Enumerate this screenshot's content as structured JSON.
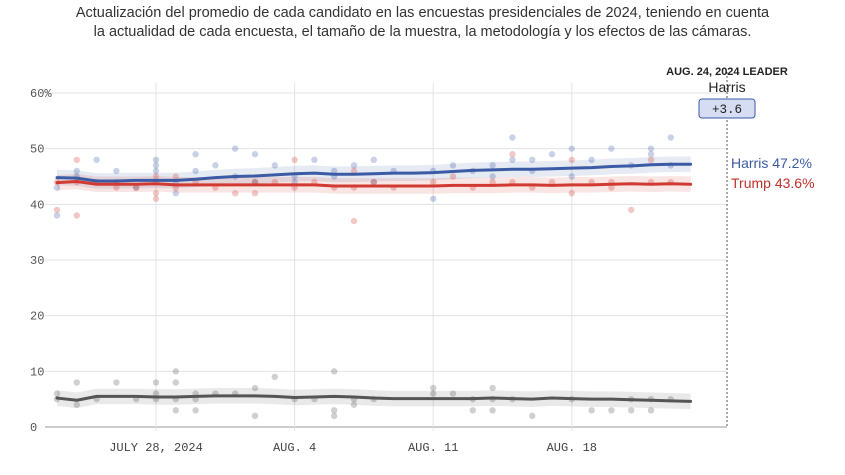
{
  "subtitle": "Actualización del promedio de cada candidato en las encuestas presidenciales de 2024, teniendo en cuenta la actualidad de cada encuesta, el tamaño de la muestra, la metodología y los efectos de las cámaras.",
  "leader": {
    "heading": "AUG. 24, 2024 LEADER",
    "name": "Harris",
    "margin": "+3.6"
  },
  "labels": {
    "harris": "Harris 47.2%",
    "trump": "Trump 43.6%"
  },
  "colors": {
    "harris": "#3b5ba5",
    "trump": "#d03a32",
    "other": "#555555",
    "grid": "#e3e3e3",
    "leader_box": "#d6dcf2"
  },
  "chart_data": {
    "type": "line",
    "ylim": [
      0,
      60
    ],
    "y_ticks": [
      "0",
      "10",
      "20",
      "30",
      "40",
      "50",
      "60%"
    ],
    "x_ticks": [
      {
        "label": "JULY 28, 2024",
        "day": 28
      },
      {
        "label": "AUG. 4",
        "day": 35
      },
      {
        "label": "AUG. 11",
        "day": 42
      },
      {
        "label": "AUG. 18",
        "day": 49
      }
    ],
    "x_days": [
      23,
      24,
      25,
      26,
      27,
      28,
      29,
      30,
      31,
      32,
      33,
      34,
      35,
      36,
      37,
      38,
      39,
      40,
      41,
      42,
      43,
      44,
      45,
      46,
      47,
      48,
      49,
      50,
      51,
      52,
      53,
      54,
      55
    ],
    "series": [
      {
        "key": "harris",
        "values": [
          44.8,
          44.7,
          44.2,
          44.2,
          44.3,
          44.3,
          44.3,
          44.5,
          44.8,
          45.0,
          45.1,
          45.3,
          45.5,
          45.6,
          45.4,
          45.4,
          45.5,
          45.6,
          45.6,
          45.7,
          45.9,
          46.1,
          46.2,
          46.3,
          46.3,
          46.4,
          46.5,
          46.6,
          46.8,
          46.9,
          47.1,
          47.2,
          47.2
        ],
        "polls": [
          [
            23,
            43
          ],
          [
            23,
            38
          ],
          [
            24,
            46
          ],
          [
            24,
            45
          ],
          [
            25,
            48
          ],
          [
            26,
            46
          ],
          [
            26,
            44
          ],
          [
            27,
            43
          ],
          [
            28,
            48
          ],
          [
            28,
            47
          ],
          [
            28,
            46
          ],
          [
            29,
            44
          ],
          [
            29,
            42
          ],
          [
            30,
            49
          ],
          [
            30,
            46
          ],
          [
            31,
            47
          ],
          [
            32,
            50
          ],
          [
            32,
            45
          ],
          [
            33,
            49
          ],
          [
            33,
            44
          ],
          [
            34,
            47
          ],
          [
            35,
            45
          ],
          [
            35,
            44
          ],
          [
            36,
            48
          ],
          [
            37,
            46
          ],
          [
            37,
            45
          ],
          [
            38,
            47
          ],
          [
            39,
            48
          ],
          [
            39,
            44
          ],
          [
            40,
            46
          ],
          [
            42,
            41
          ],
          [
            42,
            46
          ],
          [
            43,
            47
          ],
          [
            44,
            46
          ],
          [
            45,
            47
          ],
          [
            45,
            45
          ],
          [
            46,
            52
          ],
          [
            46,
            48
          ],
          [
            47,
            48
          ],
          [
            47,
            46
          ],
          [
            48,
            49
          ],
          [
            49,
            50
          ],
          [
            49,
            45
          ],
          [
            50,
            48
          ],
          [
            51,
            50
          ],
          [
            52,
            47
          ],
          [
            53,
            50
          ],
          [
            53,
            49
          ],
          [
            54,
            52
          ],
          [
            54,
            47
          ]
        ]
      },
      {
        "key": "trump",
        "values": [
          43.9,
          44.1,
          43.6,
          43.6,
          43.6,
          43.7,
          43.5,
          43.5,
          43.5,
          43.5,
          43.5,
          43.5,
          43.5,
          43.5,
          43.3,
          43.3,
          43.3,
          43.3,
          43.3,
          43.3,
          43.4,
          43.4,
          43.4,
          43.5,
          43.5,
          43.4,
          43.5,
          43.5,
          43.6,
          43.7,
          43.6,
          43.7,
          43.6
        ],
        "polls": [
          [
            23,
            44
          ],
          [
            23,
            39
          ],
          [
            24,
            48
          ],
          [
            24,
            44
          ],
          [
            24,
            38
          ],
          [
            25,
            44
          ],
          [
            26,
            43
          ],
          [
            27,
            43
          ],
          [
            28,
            45
          ],
          [
            28,
            44
          ],
          [
            28,
            42
          ],
          [
            28,
            41
          ],
          [
            29,
            45
          ],
          [
            29,
            43
          ],
          [
            30,
            44
          ],
          [
            31,
            43
          ],
          [
            32,
            42
          ],
          [
            33,
            44
          ],
          [
            33,
            42
          ],
          [
            34,
            44
          ],
          [
            35,
            48
          ],
          [
            35,
            43
          ],
          [
            36,
            44
          ],
          [
            37,
            43
          ],
          [
            38,
            46
          ],
          [
            38,
            43
          ],
          [
            38,
            37
          ],
          [
            39,
            44
          ],
          [
            40,
            43
          ],
          [
            42,
            44
          ],
          [
            43,
            45
          ],
          [
            44,
            43
          ],
          [
            45,
            44
          ],
          [
            46,
            49
          ],
          [
            46,
            44
          ],
          [
            47,
            43
          ],
          [
            48,
            44
          ],
          [
            49,
            48
          ],
          [
            49,
            42
          ],
          [
            50,
            44
          ],
          [
            51,
            44
          ],
          [
            51,
            43
          ],
          [
            52,
            39
          ],
          [
            53,
            48
          ],
          [
            53,
            44
          ],
          [
            54,
            44
          ]
        ]
      },
      {
        "key": "other",
        "values": [
          5.2,
          4.8,
          5.5,
          5.5,
          5.5,
          5.4,
          5.4,
          5.5,
          5.6,
          5.6,
          5.6,
          5.5,
          5.3,
          5.4,
          5.5,
          5.4,
          5.2,
          5.1,
          5.1,
          5.1,
          5.1,
          5.1,
          5.2,
          5.1,
          5.0,
          5.2,
          5.1,
          5.0,
          5.0,
          4.9,
          4.8,
          4.7,
          4.6
        ],
        "polls": [
          [
            23,
            6
          ],
          [
            23,
            5
          ],
          [
            24,
            8
          ],
          [
            24,
            4
          ],
          [
            25,
            5
          ],
          [
            26,
            8
          ],
          [
            27,
            5
          ],
          [
            28,
            8
          ],
          [
            28,
            6
          ],
          [
            28,
            5
          ],
          [
            29,
            10
          ],
          [
            29,
            8
          ],
          [
            29,
            5
          ],
          [
            29,
            3
          ],
          [
            30,
            6
          ],
          [
            30,
            5
          ],
          [
            30,
            3
          ],
          [
            31,
            6
          ],
          [
            32,
            6
          ],
          [
            33,
            2
          ],
          [
            33,
            7
          ],
          [
            34,
            9
          ],
          [
            35,
            5
          ],
          [
            36,
            5
          ],
          [
            37,
            10
          ],
          [
            37,
            3
          ],
          [
            37,
            2
          ],
          [
            38,
            5
          ],
          [
            38,
            4
          ],
          [
            39,
            5
          ],
          [
            42,
            6
          ],
          [
            42,
            7
          ],
          [
            43,
            6
          ],
          [
            44,
            5
          ],
          [
            44,
            3
          ],
          [
            45,
            5
          ],
          [
            45,
            7
          ],
          [
            45,
            3
          ],
          [
            46,
            5
          ],
          [
            47,
            2
          ],
          [
            49,
            5
          ],
          [
            50,
            3
          ],
          [
            51,
            3
          ],
          [
            52,
            5
          ],
          [
            52,
            3
          ],
          [
            53,
            3
          ],
          [
            53,
            5
          ],
          [
            54,
            5
          ]
        ]
      }
    ]
  }
}
